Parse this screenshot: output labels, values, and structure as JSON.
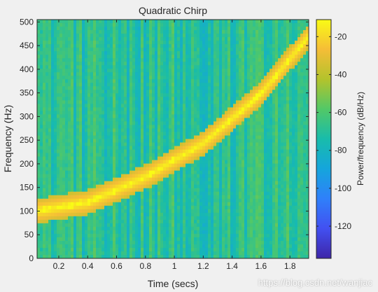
{
  "chart_data": {
    "type": "heatmap",
    "title": "Quadratic Chirp",
    "xlabel": "Time (secs)",
    "ylabel": "Frequency (Hz)",
    "xlim": [
      0.05,
      1.93
    ],
    "ylim": [
      0,
      505
    ],
    "x_ticks": [
      0.2,
      0.4,
      0.6,
      0.8,
      1,
      1.2,
      1.4,
      1.6,
      1.8
    ],
    "y_ticks": [
      0,
      50,
      100,
      150,
      200,
      250,
      300,
      350,
      400,
      450,
      500
    ],
    "colorbar": {
      "label": "Power/frequency (dB/Hz)",
      "range": [
        -137,
        -11
      ],
      "ticks": [
        -20,
        -40,
        -60,
        -80,
        -100,
        -120
      ],
      "colormap": "parula"
    },
    "ridge": {
      "description": "quadratic chirp ridge",
      "points": [
        {
          "t": 0.05,
          "f": 100
        },
        {
          "t": 0.4,
          "f": 118
        },
        {
          "t": 0.8,
          "f": 172
        },
        {
          "t": 1.2,
          "f": 243
        },
        {
          "t": 1.6,
          "f": 348
        },
        {
          "t": 1.93,
          "f": 470
        }
      ],
      "peak_db": -14,
      "background_db": -70
    }
  },
  "watermark": "https://blog.csdn.net/wanjiac"
}
